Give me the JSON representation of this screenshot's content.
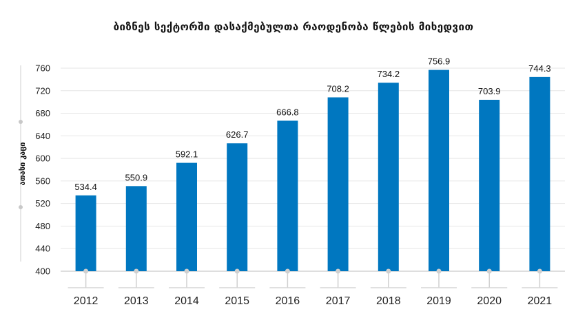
{
  "chart_data": {
    "type": "bar",
    "title": "ბიზნეს სექტორში დასაქმებულთა რაოდენობა წლების მიხედვით",
    "ylabel": "ათასი კაცი",
    "xlabel": "",
    "categories": [
      "2012",
      "2013",
      "2014",
      "2015",
      "2016",
      "2017",
      "2018",
      "2019",
      "2020",
      "2021"
    ],
    "values": [
      534.4,
      550.9,
      592.1,
      626.7,
      666.8,
      708.2,
      734.2,
      756.9,
      703.9,
      744.3
    ],
    "value_labels": [
      "534.4",
      "550.9",
      "592.1",
      "626.7",
      "666.8",
      "708.2",
      "734.2",
      "756.9",
      "703.9",
      "744.3"
    ],
    "yticks": [
      "400",
      "440",
      "480",
      "520",
      "560",
      "600",
      "640",
      "680",
      "720",
      "760"
    ],
    "ylim": [
      400,
      760
    ],
    "grid": true,
    "bar_color": "#0077c0"
  }
}
